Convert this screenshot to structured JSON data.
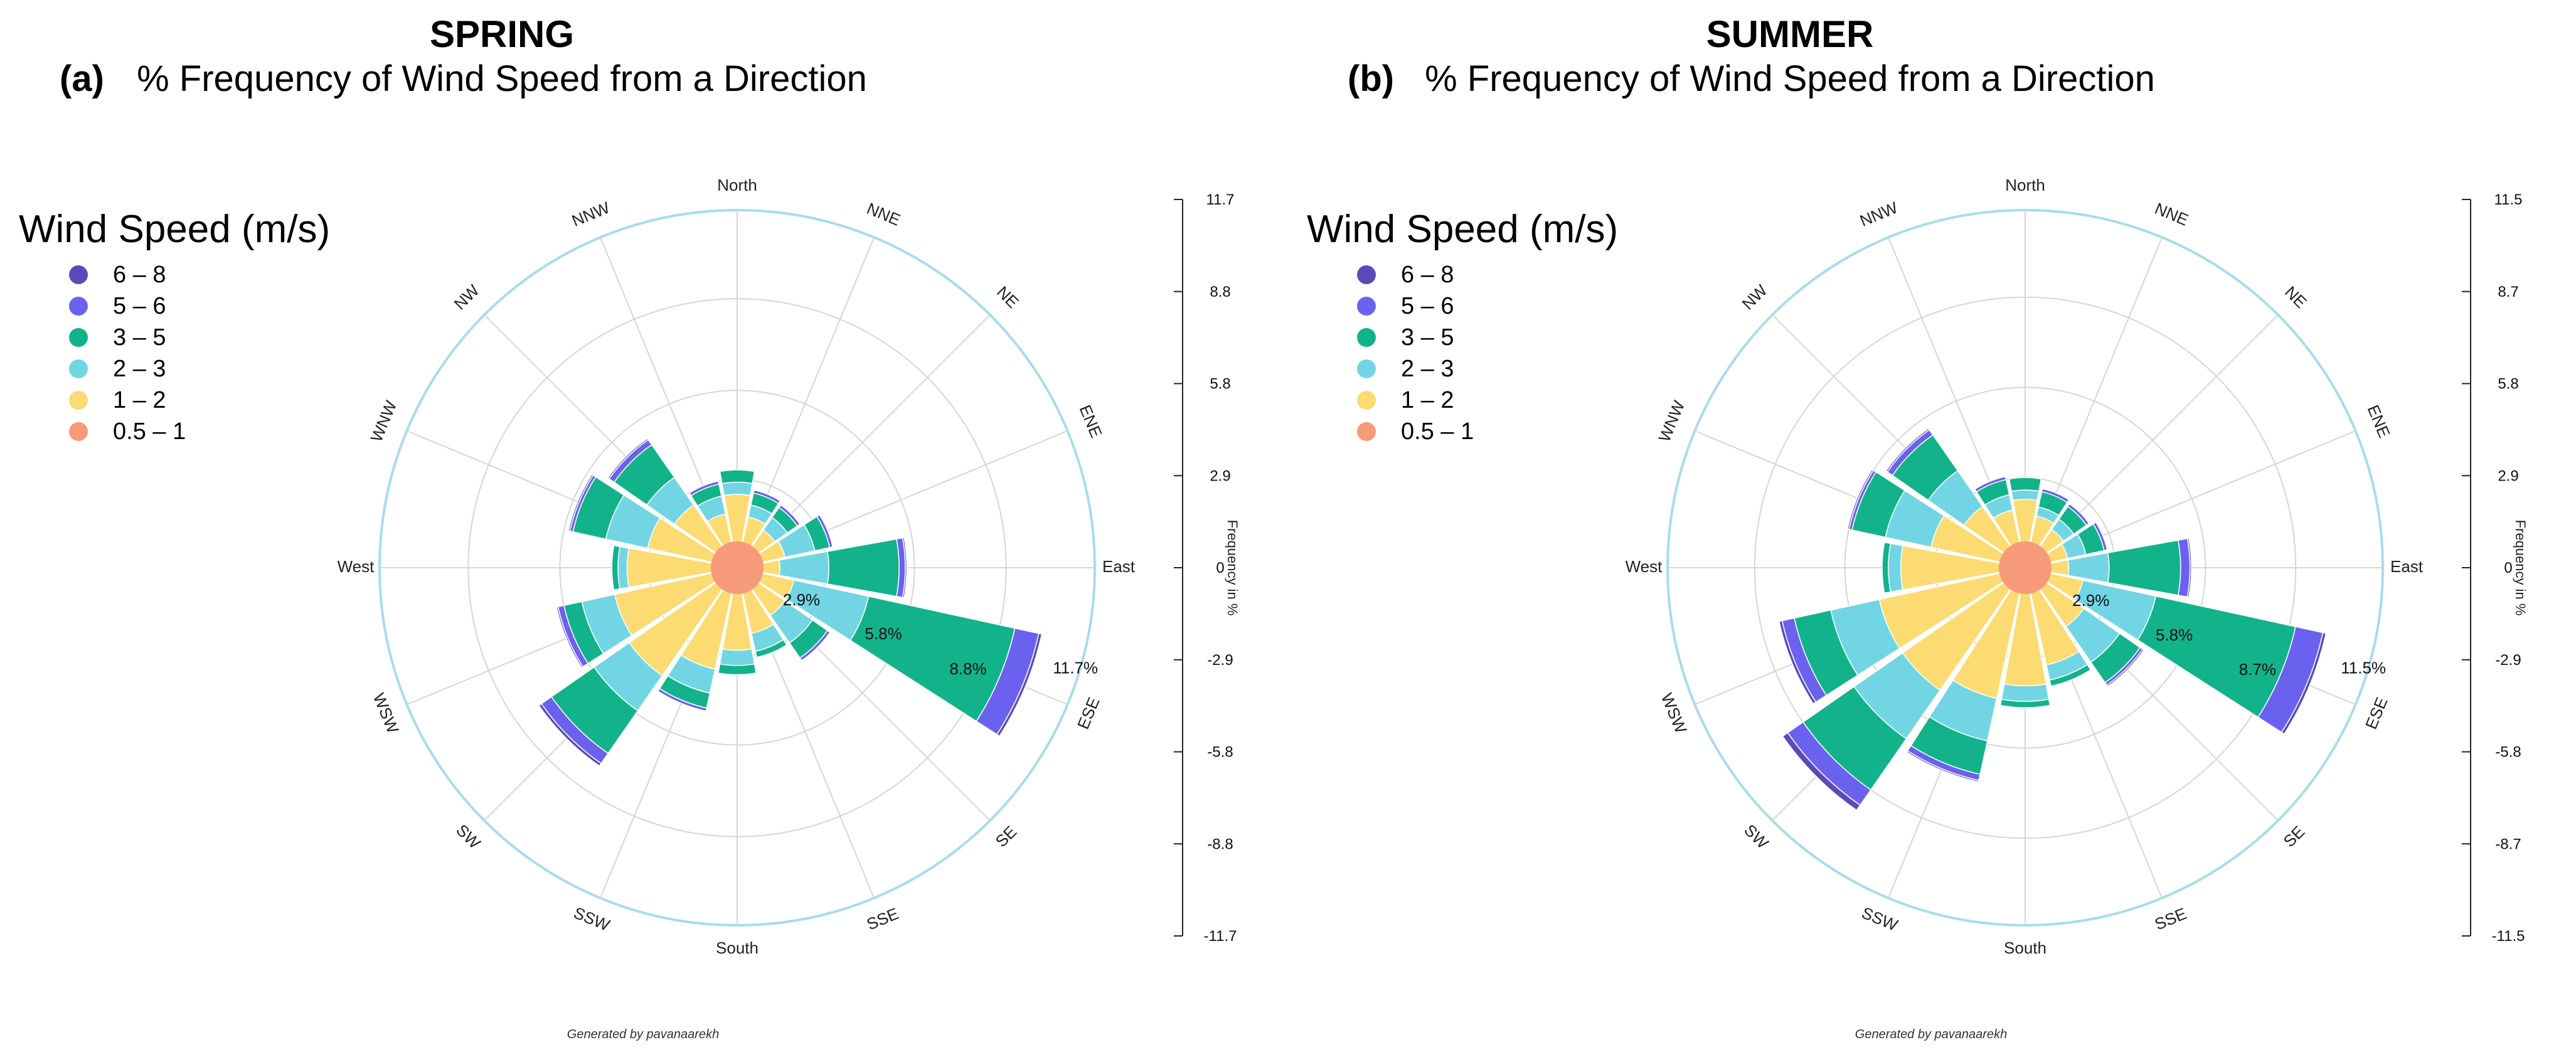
{
  "panels": [
    {
      "label": "(a)",
      "season": "SPRING",
      "title": "% Frequency of Wind Speed from a Direction",
      "legend_title": "Wind Speed (m/s)",
      "credit": "Generated by pavanaarekh"
    },
    {
      "label": "(b)",
      "season": "SUMMER",
      "title": "% Frequency of Wind Speed from a Direction",
      "legend_title": "Wind Speed (m/s)",
      "credit": "Generated by pavanaarekh"
    }
  ],
  "chart_data": [
    {
      "type": "wind-rose",
      "title": "% Frequency of Wind Speed from a Direction",
      "directions": [
        "North",
        "NNE",
        "NE",
        "ENE",
        "East",
        "ESE",
        "SE",
        "SSE",
        "South",
        "SSW",
        "SW",
        "WSW",
        "West",
        "WNW",
        "NW",
        "NNW"
      ],
      "series": [
        {
          "name": "0.5 – 1",
          "color": "#f79a7a",
          "values": [
            0.8,
            0.7,
            0.6,
            0.6,
            0.6,
            0.7,
            0.6,
            0.6,
            0.7,
            0.7,
            0.8,
            0.7,
            0.7,
            0.8,
            0.7,
            0.7
          ]
        },
        {
          "name": "1 – 2",
          "color": "#fbdb72",
          "values": [
            1.6,
            1.0,
            0.9,
            1.0,
            0.8,
            1.2,
            1.3,
            1.6,
            2.0,
            2.7,
            3.5,
            3.4,
            2.9,
            2.2,
            1.8,
            1.1
          ]
        },
        {
          "name": "2 – 3",
          "color": "#72d5e3",
          "values": [
            0.4,
            0.4,
            0.5,
            1.0,
            1.6,
            2.5,
            1.1,
            0.6,
            0.5,
            0.8,
            1.4,
            1.1,
            0.3,
            1.4,
            1.1,
            0.6
          ]
        },
        {
          "name": "3 – 5",
          "color": "#12b38b",
          "values": [
            0.4,
            0.4,
            0.4,
            0.5,
            2.3,
            4.9,
            0.6,
            0.2,
            0.3,
            0.5,
            1.7,
            0.6,
            0.2,
            1.1,
            1.3,
            0.4
          ]
        },
        {
          "name": "5 – 6",
          "color": "#6a62ee",
          "values": [
            0,
            0.1,
            0.1,
            0.1,
            0.2,
            0.8,
            0.1,
            0,
            0,
            0.1,
            0.4,
            0.2,
            0,
            0.1,
            0.2,
            0.1
          ]
        },
        {
          "name": "6 – 8",
          "color": "#5a4bb8",
          "values": [
            0,
            0,
            0,
            0,
            0.05,
            0.1,
            0,
            0,
            0,
            0,
            0.1,
            0.05,
            0,
            0.05,
            0.05,
            0
          ]
        }
      ],
      "rings": [
        2.9,
        5.8,
        8.8,
        11.7
      ],
      "ring_labels": [
        "2.9%",
        "5.8%",
        "8.8%",
        "11.7%"
      ],
      "axis_ticks": [
        "11.7",
        "8.8",
        "5.8",
        "2.9",
        "0",
        "-2.9",
        "-5.8",
        "-8.8",
        "-11.7"
      ],
      "axis_label": "Frequency in %",
      "max": 11.7
    },
    {
      "type": "wind-rose",
      "title": "% Frequency of Wind Speed from a Direction",
      "directions": [
        "North",
        "NNE",
        "NE",
        "ENE",
        "East",
        "ESE",
        "SE",
        "SSE",
        "South",
        "SSW",
        "SW",
        "WSW",
        "West",
        "WNW",
        "NW",
        "NNW"
      ],
      "series": [
        {
          "name": "0.5 – 1",
          "color": "#f79a7a",
          "values": [
            0.7,
            0.6,
            0.6,
            0.5,
            0.5,
            0.6,
            0.6,
            0.6,
            0.7,
            0.7,
            0.8,
            0.7,
            0.7,
            0.7,
            0.6,
            0.6
          ]
        },
        {
          "name": "1 – 2",
          "color": "#fbdb72",
          "values": [
            1.5,
            1.1,
            0.9,
            0.9,
            0.9,
            1.3,
            1.7,
            2.6,
            3.1,
            3.6,
            4.0,
            4.1,
            3.3,
            2.4,
            1.8,
            1.3
          ]
        },
        {
          "name": "2 – 3",
          "color": "#72d5e3",
          "values": [
            0.3,
            0.3,
            0.4,
            0.6,
            1.3,
            2.4,
            1.4,
            0.5,
            0.5,
            1.4,
            1.9,
            1.6,
            0.4,
            1.5,
            1.4,
            0.5
          ]
        },
        {
          "name": "3 – 5",
          "color": "#12b38b",
          "values": [
            0.4,
            0.5,
            0.5,
            0.6,
            2.3,
            4.6,
            0.8,
            0.2,
            0.2,
            1.1,
            2.0,
            1.2,
            0.2,
            1.1,
            1.4,
            0.5
          ]
        },
        {
          "name": "5 – 6",
          "color": "#6a62ee",
          "values": [
            0,
            0.1,
            0.1,
            0.1,
            0.3,
            0.9,
            0.1,
            0,
            0,
            0.2,
            0.6,
            0.4,
            0,
            0.1,
            0.2,
            0.1
          ]
        },
        {
          "name": "6 – 8",
          "color": "#5a4bb8",
          "values": [
            0,
            0,
            0,
            0,
            0.05,
            0.1,
            0.05,
            0,
            0,
            0.05,
            0.2,
            0.1,
            0,
            0.05,
            0.05,
            0
          ]
        }
      ],
      "rings": [
        2.9,
        5.8,
        8.7,
        11.5
      ],
      "ring_labels": [
        "2.9%",
        "5.8%",
        "8.7%",
        "11.5%"
      ],
      "axis_ticks": [
        "11.5",
        "8.7",
        "5.8",
        "2.9",
        "0",
        "-2.9",
        "-5.8",
        "-8.7",
        "-11.5"
      ],
      "axis_label": "Frequency in %",
      "max": 11.5
    }
  ]
}
